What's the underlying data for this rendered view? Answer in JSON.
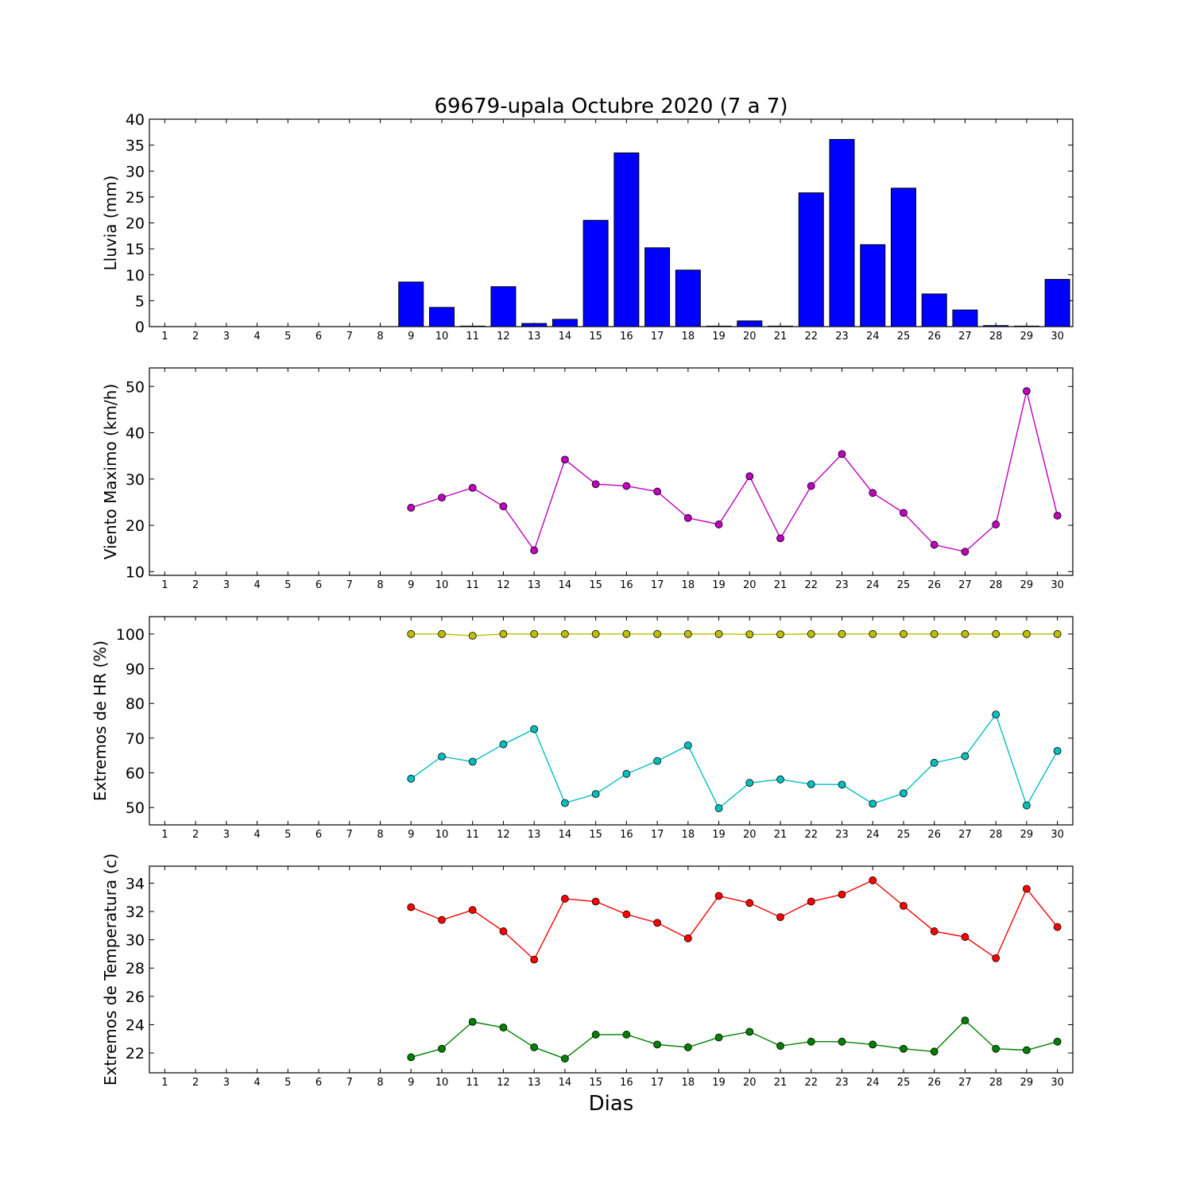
{
  "chart_data": [
    {
      "type": "bar",
      "title": "69679-upala Octubre 2020  (7 a 7)",
      "xlabel": "",
      "ylabel": "Lluvia (mm)",
      "categories": [
        "1",
        "2",
        "3",
        "4",
        "5",
        "6",
        "7",
        "8",
        "9",
        "10",
        "11",
        "12",
        "13",
        "14",
        "15",
        "16",
        "17",
        "18",
        "19",
        "20",
        "21",
        "22",
        "23",
        "24",
        "25",
        "26",
        "27",
        "28",
        "29",
        "30"
      ],
      "values": [
        0,
        0,
        0,
        0,
        0,
        0,
        0,
        0,
        8.6,
        3.7,
        0.1,
        7.7,
        0.6,
        1.4,
        20.5,
        33.5,
        15.2,
        10.9,
        0.1,
        1.1,
        0.1,
        25.8,
        36.1,
        15.8,
        26.7,
        6.3,
        3.2,
        0.2,
        0.1,
        9.1
      ],
      "ylim": [
        0,
        40
      ],
      "yticks": [
        0,
        5,
        10,
        15,
        20,
        25,
        30,
        35,
        40
      ],
      "colors": [
        "#0000ff"
      ],
      "grid": false
    },
    {
      "type": "line",
      "title": "",
      "xlabel": "",
      "ylabel": "Viento Maximo (km/h)",
      "categories": [
        "1",
        "2",
        "3",
        "4",
        "5",
        "6",
        "7",
        "8",
        "9",
        "10",
        "11",
        "12",
        "13",
        "14",
        "15",
        "16",
        "17",
        "18",
        "19",
        "20",
        "21",
        "22",
        "23",
        "24",
        "25",
        "26",
        "27",
        "28",
        "29",
        "30"
      ],
      "series": [
        {
          "values": [
            null,
            null,
            null,
            null,
            null,
            null,
            null,
            null,
            23.8,
            26,
            28.1,
            24.1,
            14.6,
            34.2,
            28.9,
            28.5,
            27.3,
            21.6,
            20.2,
            30.6,
            17.2,
            28.5,
            35.4,
            27,
            22.7,
            15.8,
            14.3,
            20.2,
            49,
            22.1
          ],
          "color": "#bf00bf"
        }
      ],
      "ylim": [
        9.2,
        54
      ],
      "yticks": [
        10,
        20,
        30,
        40,
        50
      ],
      "grid": false
    },
    {
      "type": "line",
      "title": "",
      "xlabel": "",
      "ylabel": "Extremos de HR (%)",
      "categories": [
        "1",
        "2",
        "3",
        "4",
        "5",
        "6",
        "7",
        "8",
        "9",
        "10",
        "11",
        "12",
        "13",
        "14",
        "15",
        "16",
        "17",
        "18",
        "19",
        "20",
        "21",
        "22",
        "23",
        "24",
        "25",
        "26",
        "27",
        "28",
        "29",
        "30"
      ],
      "series": [
        {
          "values": [
            null,
            null,
            null,
            null,
            null,
            null,
            null,
            null,
            100,
            100,
            99.5,
            100,
            100,
            100,
            100,
            100,
            100,
            100,
            100,
            99.9,
            99.9,
            100,
            100,
            100,
            100,
            100,
            100,
            100,
            100,
            100
          ],
          "color": "#bfbf00"
        },
        {
          "values": [
            null,
            null,
            null,
            null,
            null,
            null,
            null,
            null,
            58.3,
            64.7,
            63.2,
            68.2,
            72.6,
            51.3,
            53.9,
            59.7,
            63.4,
            67.9,
            49.8,
            57.1,
            58.1,
            56.7,
            56.6,
            51.1,
            54.1,
            62.9,
            64.8,
            76.8,
            50.6,
            66.3
          ],
          "color": "#00bfbf"
        }
      ],
      "ylim": [
        45,
        105
      ],
      "yticks": [
        50,
        60,
        70,
        80,
        90,
        100
      ],
      "grid": false
    },
    {
      "type": "line",
      "title": "",
      "xlabel": "Dias",
      "ylabel": "Extremos de Temperatura (c)",
      "categories": [
        "1",
        "2",
        "3",
        "4",
        "5",
        "6",
        "7",
        "8",
        "9",
        "10",
        "11",
        "12",
        "13",
        "14",
        "15",
        "16",
        "17",
        "18",
        "19",
        "20",
        "21",
        "22",
        "23",
        "24",
        "25",
        "26",
        "27",
        "28",
        "29",
        "30"
      ],
      "series": [
        {
          "values": [
            null,
            null,
            null,
            null,
            null,
            null,
            null,
            null,
            32.3,
            31.4,
            32.1,
            30.6,
            28.6,
            32.9,
            32.7,
            31.8,
            31.2,
            30.1,
            33.1,
            32.6,
            31.6,
            32.7,
            33.2,
            34.2,
            32.4,
            30.6,
            30.2,
            28.7,
            33.6,
            30.9
          ],
          "color": "#ff0000"
        },
        {
          "values": [
            null,
            null,
            null,
            null,
            null,
            null,
            null,
            null,
            21.7,
            22.3,
            24.2,
            23.8,
            22.4,
            21.6,
            23.3,
            23.3,
            22.6,
            22.4,
            23.1,
            23.5,
            22.5,
            22.8,
            22.8,
            22.6,
            22.3,
            22.1,
            24.3,
            22.3,
            22.2,
            22.8
          ],
          "color": "#008000"
        }
      ],
      "ylim": [
        20.6,
        35.2
      ],
      "yticks": [
        22,
        24,
        26,
        28,
        30,
        32,
        34
      ],
      "grid": false
    }
  ]
}
